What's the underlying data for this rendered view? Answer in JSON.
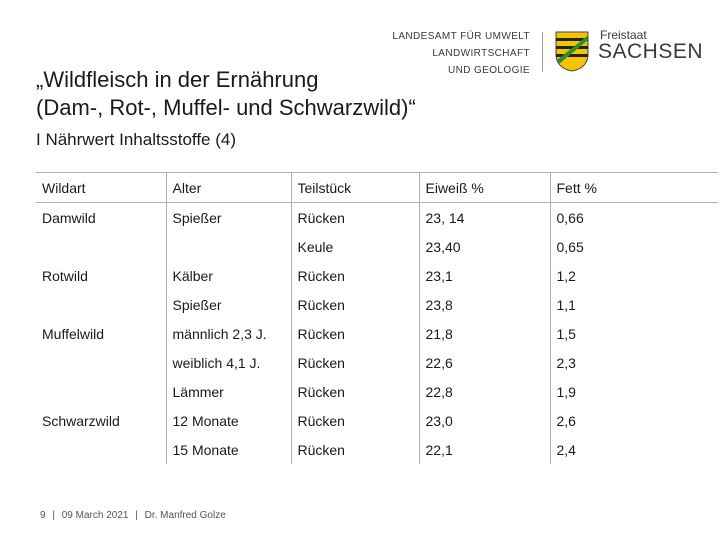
{
  "header": {
    "org_lines": [
      "LANDESAMT FÜR UMWELT",
      "LANDWIRTSCHAFT",
      "UND GEOLOGIE"
    ],
    "state_small": "Freistaat",
    "state_big": "SACHSEN",
    "crest_icon": "saxony-crest-icon"
  },
  "title": {
    "line1": "„Wildfleisch in der Ernährung",
    "line2": "(Dam-, Rot-, Muffel- und Schwarzwild)“",
    "subtitle": "I Nährwert Inhaltsstoffe (4)"
  },
  "table": {
    "headers": [
      "Wildart",
      "Alter",
      "Teilstück",
      "Eiweiß %",
      "Fett %"
    ],
    "rows": [
      [
        "Damwild",
        "Spießer",
        "Rücken",
        "23, 14",
        "0,66"
      ],
      [
        "",
        "",
        "Keule",
        "23,40",
        "0,65"
      ],
      [
        "Rotwild",
        "Kälber",
        "Rücken",
        "23,1",
        "1,2"
      ],
      [
        "",
        "Spießer",
        "Rücken",
        "23,8",
        "1,1"
      ],
      [
        "Muffelwild",
        "männlich 2,3 J.",
        "Rücken",
        "21,8",
        "1,5"
      ],
      [
        "",
        "weiblich 4,1 J.",
        "Rücken",
        "22,6",
        "2,3"
      ],
      [
        "",
        "Lämmer",
        "Rücken",
        "22,8",
        "1,9"
      ],
      [
        "Schwarzwild",
        "12 Monate",
        "Rücken",
        "23,0",
        "2,6"
      ],
      [
        "",
        "15 Monate",
        "Rücken",
        "22,1",
        "2,4"
      ]
    ]
  },
  "footer": {
    "page": "9",
    "date": "09 March 2021",
    "author": "Dr. Manfred Golze",
    "separator": "|"
  },
  "colors": {
    "crest_green": "#2e8b2e",
    "crest_yellow": "#f5c400",
    "grid": "#b0b0b0"
  }
}
